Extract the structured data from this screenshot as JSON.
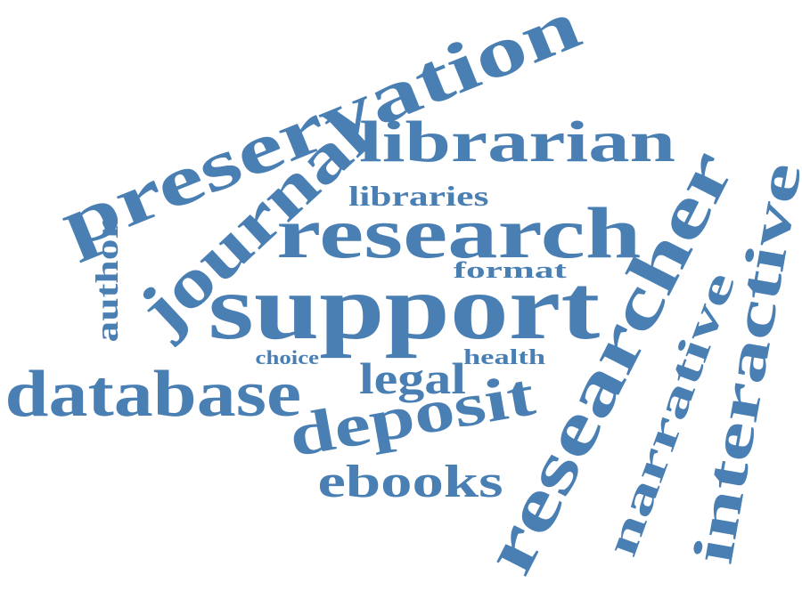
{
  "color": "#4a7fb4",
  "words": [
    {
      "id": "preservation",
      "text": "preservation"
    },
    {
      "id": "journal",
      "text": "journal"
    },
    {
      "id": "librarian",
      "text": "librarian"
    },
    {
      "id": "libraries",
      "text": "libraries"
    },
    {
      "id": "research",
      "text": "research"
    },
    {
      "id": "researcher",
      "text": "researcher"
    },
    {
      "id": "interactive",
      "text": "interactive"
    },
    {
      "id": "narrative",
      "text": "narrative"
    },
    {
      "id": "format",
      "text": "format"
    },
    {
      "id": "author",
      "text": "author"
    },
    {
      "id": "support",
      "text": "support"
    },
    {
      "id": "choice",
      "text": "choice"
    },
    {
      "id": "health",
      "text": "health"
    },
    {
      "id": "legal",
      "text": "legal"
    },
    {
      "id": "database",
      "text": "database"
    },
    {
      "id": "deposit",
      "text": "deposit"
    },
    {
      "id": "ebooks",
      "text": "ebooks"
    }
  ]
}
